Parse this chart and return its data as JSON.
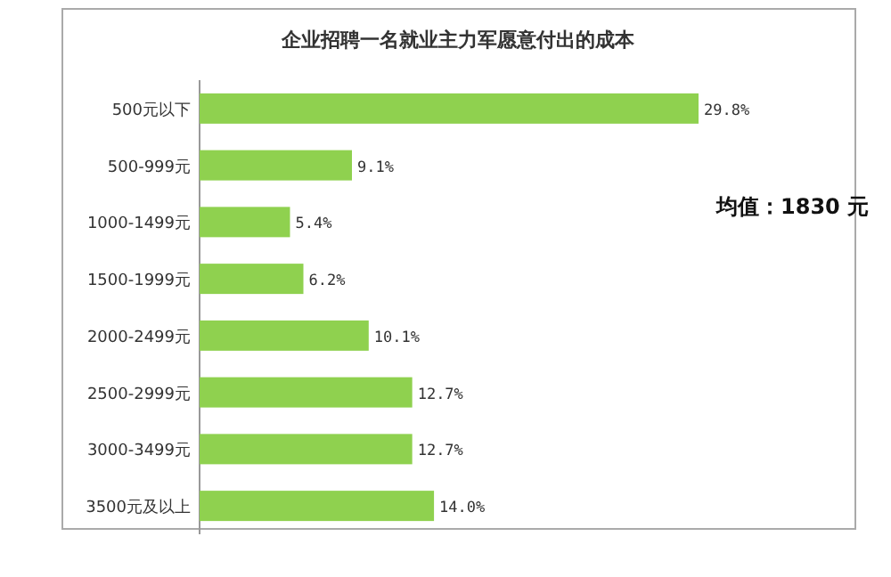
{
  "chart_data": {
    "type": "bar",
    "orientation": "horizontal",
    "title": "企业招聘一名就业主力军愿意付出的成本",
    "categories": [
      "500元以下",
      "500-999元",
      "1000-1499元",
      "1500-1999元",
      "2000-2499元",
      "2500-2999元",
      "3000-3499元",
      "3500元及以上"
    ],
    "values": [
      29.8,
      9.1,
      5.4,
      6.2,
      10.1,
      12.7,
      12.7,
      14.0
    ],
    "value_labels": [
      "29.8%",
      "9.1%",
      "5.4%",
      "6.2%",
      "10.1%",
      "12.7%",
      "12.7%",
      "14.0%"
    ],
    "color": "#8fd14f",
    "annotations": [
      "均值：1830 元"
    ]
  }
}
